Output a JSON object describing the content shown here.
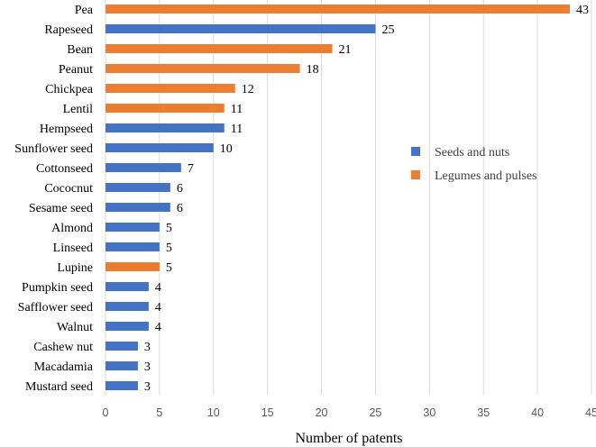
{
  "chart_data": {
    "type": "bar",
    "orientation": "horizontal",
    "xlabel": "Number of patents",
    "ylabel": "",
    "xlim": [
      0,
      45
    ],
    "x_ticks": [
      0,
      5,
      10,
      15,
      20,
      25,
      30,
      35,
      40,
      45
    ],
    "grid": "vertical",
    "legend_position": "right",
    "series": [
      {
        "name": "Seeds and nuts",
        "color": "#4472c4"
      },
      {
        "name": "Legumes and pulses",
        "color": "#ed7d31"
      }
    ],
    "categories": [
      "Pea",
      "Rapeseed",
      "Bean",
      "Peanut",
      "Chickpea",
      "Lentil",
      "Hempseed",
      "Sunflower seed",
      "Cottonseed",
      "Cococnut",
      "Sesame seed",
      "Almond",
      "Linseed",
      "Lupine",
      "Pumpkin seed",
      "Safflower seed",
      "Walnut",
      "Cashew nut",
      "Macadamia",
      "Mustard seed"
    ],
    "values": [
      43,
      25,
      21,
      18,
      12,
      11,
      11,
      10,
      7,
      6,
      6,
      5,
      5,
      5,
      4,
      4,
      4,
      3,
      3,
      3
    ],
    "groups": [
      "Legumes and pulses",
      "Seeds and nuts",
      "Legumes and pulses",
      "Legumes and pulses",
      "Legumes and pulses",
      "Legumes and pulses",
      "Seeds and nuts",
      "Seeds and nuts",
      "Seeds and nuts",
      "Seeds and nuts",
      "Seeds and nuts",
      "Seeds and nuts",
      "Seeds and nuts",
      "Legumes and pulses",
      "Seeds and nuts",
      "Seeds and nuts",
      "Seeds and nuts",
      "Seeds and nuts",
      "Seeds and nuts",
      "Seeds and nuts"
    ]
  }
}
